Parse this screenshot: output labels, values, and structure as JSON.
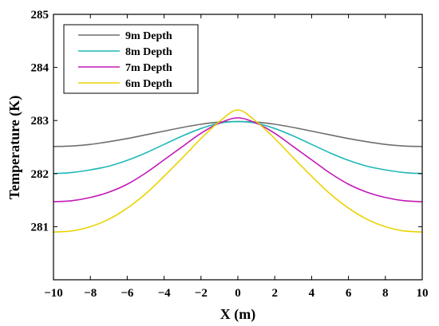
{
  "chart_data": {
    "type": "line",
    "title": "",
    "xlabel": "X (m)",
    "ylabel": "Temperature (K)",
    "xlim": [
      -10,
      10
    ],
    "ylim": [
      280,
      285
    ],
    "xticks": [
      -10,
      -8,
      -6,
      -4,
      -2,
      0,
      2,
      4,
      6,
      8,
      10
    ],
    "xtick_labels": [
      "−10",
      "−8",
      "−6",
      "−4",
      "−2",
      "0",
      "2",
      "4",
      "6",
      "8",
      "10"
    ],
    "yticks": [
      281,
      282,
      283,
      284,
      285
    ],
    "ytick_labels": [
      "281",
      "282",
      "283",
      "284",
      "285"
    ],
    "grid": false,
    "legend_position": "top-left",
    "x": [
      -10,
      -9,
      -8,
      -7,
      -6,
      -5,
      -4,
      -3,
      -2,
      -1,
      0,
      1,
      2,
      3,
      4,
      5,
      6,
      7,
      8,
      9,
      10
    ],
    "series": [
      {
        "name": "9m Depth",
        "color": "#6e6e6e",
        "values": [
          282.51,
          282.52,
          282.55,
          282.6,
          282.66,
          282.73,
          282.8,
          282.87,
          282.93,
          282.97,
          282.98,
          282.97,
          282.93,
          282.87,
          282.8,
          282.73,
          282.66,
          282.6,
          282.55,
          282.52,
          282.51
        ]
      },
      {
        "name": "8m Depth",
        "color": "#1fb8b8",
        "values": [
          282.0,
          282.02,
          282.07,
          282.14,
          282.25,
          282.39,
          282.55,
          282.71,
          282.85,
          282.95,
          282.98,
          282.95,
          282.85,
          282.71,
          282.55,
          282.39,
          282.25,
          282.14,
          282.07,
          282.02,
          282.0
        ]
      },
      {
        "name": "7m Depth",
        "color": "#c218b8",
        "values": [
          281.47,
          281.49,
          281.55,
          281.65,
          281.8,
          282.01,
          282.26,
          282.51,
          282.76,
          282.95,
          283.05,
          282.95,
          282.76,
          282.51,
          282.26,
          282.01,
          281.8,
          281.65,
          281.55,
          281.49,
          281.47
        ]
      },
      {
        "name": "6m Depth",
        "color": "#ebd200",
        "values": [
          280.9,
          280.92,
          281.0,
          281.14,
          281.35,
          281.62,
          281.95,
          282.3,
          282.66,
          282.98,
          283.2,
          282.98,
          282.66,
          282.3,
          281.95,
          281.62,
          281.35,
          281.14,
          281.0,
          280.92,
          280.9
        ]
      }
    ]
  }
}
